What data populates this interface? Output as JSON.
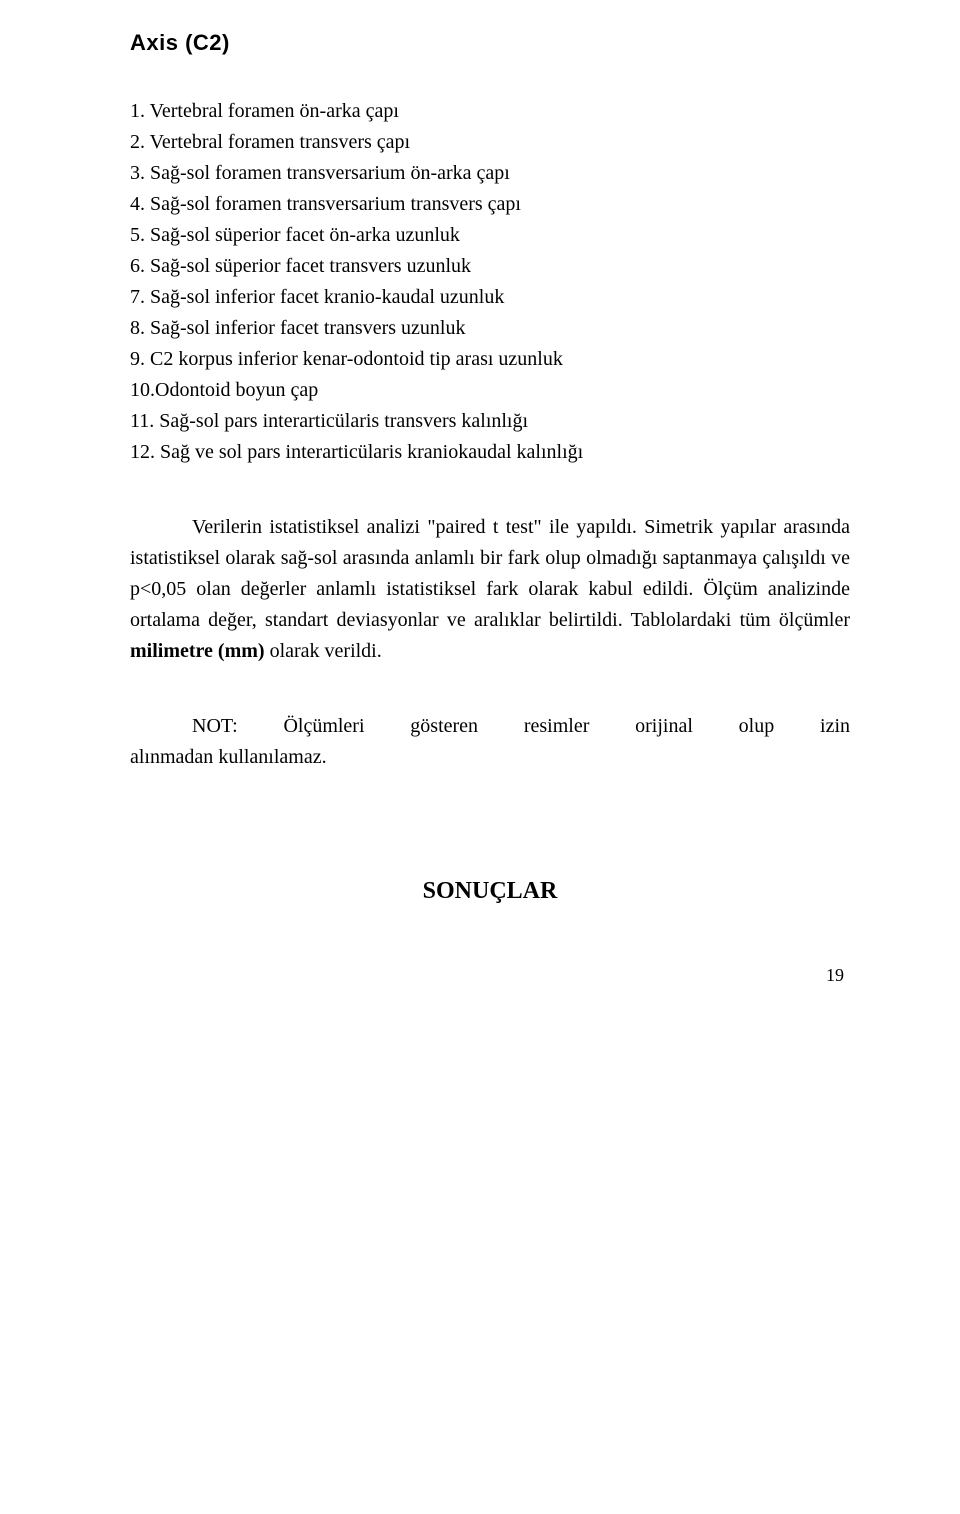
{
  "heading": "Axis (C2)",
  "list": [
    "1. Vertebral foramen ön-arka çapı",
    "2. Vertebral foramen transvers çapı",
    "3. Sağ-sol foramen transversarium ön-arka çapı",
    "4. Sağ-sol foramen transversarium transvers çapı",
    "5. Sağ-sol süperior facet ön-arka uzunluk",
    "6. Sağ-sol süperior facet transvers uzunluk",
    "7. Sağ-sol inferior facet kranio-kaudal uzunluk",
    "8. Sağ-sol inferior facet transvers uzunluk",
    "9. C2 korpus inferior kenar-odontoid tip arası uzunluk",
    "10.Odontoid boyun çap",
    "11. Sağ-sol pars interarticülaris transvers kalınlığı",
    "12. Sağ ve sol pars interarticülaris kraniokaudal kalınlığı"
  ],
  "paragraph": {
    "part1": "Verilerin istatistiksel analizi \"paired t test\" ile yapıldı. Simetrik yapılar arasında istatistiksel olarak sağ-sol arasında anlamlı bir fark olup olmadığı saptanmaya çalışıldı ve p<0,05 olan değerler anlamlı istatistiksel fark olarak kabul edildi. Ölçüm analizinde ortalama değer, standart deviasyonlar ve aralıklar belirtildi. Tablolardaki tüm ölçümler ",
    "bold": "milimetre (mm)",
    "part2": " olarak verildi."
  },
  "note": {
    "line1": "NOT: Ölçümleri gösteren resimler orijinal olup izin alınmadan",
    "line2": "kullanılamaz."
  },
  "finalHeading": "SONUÇLAR",
  "pageNumber": "19"
}
